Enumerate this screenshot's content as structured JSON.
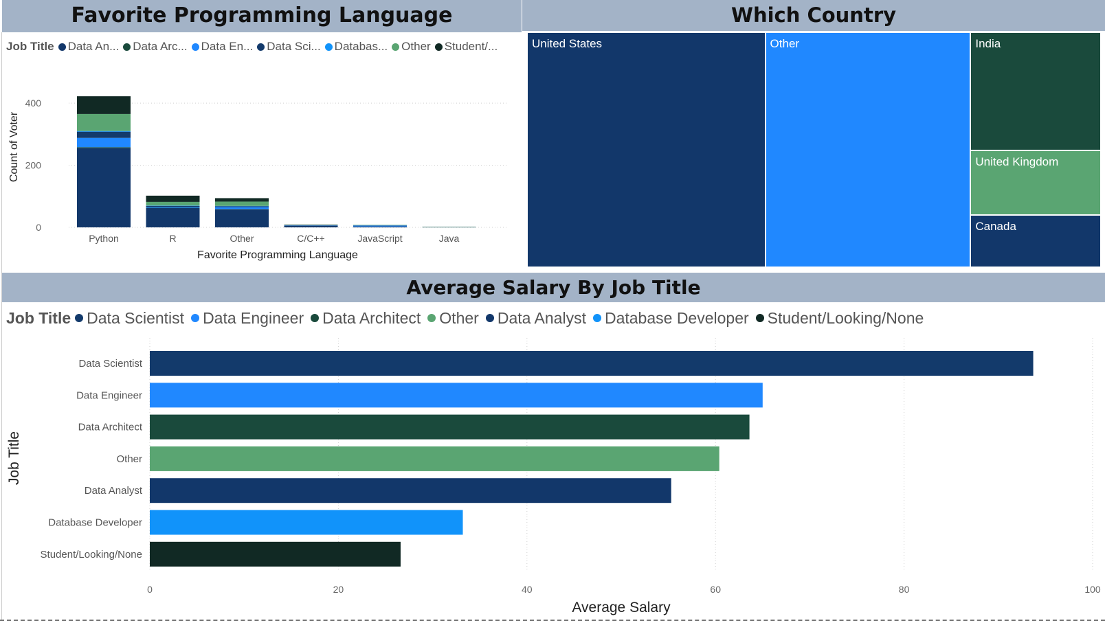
{
  "titles": {
    "languages": "Favorite Programming Language",
    "country": "Which Country",
    "salary": "Average Salary By Job Title"
  },
  "legend_top": {
    "title": "Job Title",
    "items": [
      {
        "label": "Data An...",
        "color": "#12376a"
      },
      {
        "label": "Data Arc...",
        "color": "#1a4a3c"
      },
      {
        "label": "Data En...",
        "color": "#2088ff"
      },
      {
        "label": "Data Sci...",
        "color": "#133a6b"
      },
      {
        "label": "Databas...",
        "color": "#1193fa"
      },
      {
        "label": "Other",
        "color": "#5aa572"
      },
      {
        "label": "Student/...",
        "color": "#112924"
      }
    ]
  },
  "legend_bottom": {
    "title": "Job Title",
    "items": [
      {
        "label": "Data Scientist",
        "color": "#133a6b"
      },
      {
        "label": "Data Engineer",
        "color": "#2088ff"
      },
      {
        "label": "Data Architect",
        "color": "#1a4a3c"
      },
      {
        "label": "Other",
        "color": "#5aa572"
      },
      {
        "label": "Data Analyst",
        "color": "#12376a"
      },
      {
        "label": "Database Developer",
        "color": "#1193fa"
      },
      {
        "label": "Student/Looking/None",
        "color": "#112924"
      }
    ]
  },
  "chart_data": [
    {
      "type": "bar",
      "stacked": true,
      "title": "Favorite Programming Language",
      "xlabel": "Favorite Programming Language",
      "ylabel": "Count of Voter",
      "ylim": [
        0,
        440
      ],
      "yticks": [
        0,
        200,
        400
      ],
      "grid": true,
      "categories": [
        "Python",
        "R",
        "Other",
        "C/C++",
        "JavaScript",
        "Java"
      ],
      "series": [
        {
          "name": "Data An...",
          "color": "#12376a",
          "values": [
            255,
            62,
            58,
            5,
            3,
            1
          ]
        },
        {
          "name": "Data Arc...",
          "color": "#1a4a3c",
          "values": [
            3,
            1,
            1,
            0,
            0,
            0
          ]
        },
        {
          "name": "Data En...",
          "color": "#2088ff",
          "values": [
            30,
            3,
            6,
            1,
            2,
            0
          ]
        },
        {
          "name": "Data Sci...",
          "color": "#133a6b",
          "values": [
            20,
            3,
            3,
            1,
            1,
            0
          ]
        },
        {
          "name": "Databas...",
          "color": "#1193fa",
          "values": [
            2,
            1,
            1,
            0,
            1,
            0
          ]
        },
        {
          "name": "Other",
          "color": "#5aa572",
          "values": [
            55,
            12,
            14,
            1,
            1,
            1
          ]
        },
        {
          "name": "Student/...",
          "color": "#112924",
          "values": [
            57,
            20,
            11,
            1,
            0,
            0
          ]
        }
      ]
    },
    {
      "type": "treemap",
      "title": "Which Country",
      "items": [
        {
          "label": "United States",
          "color": "#12376a",
          "value": 254
        },
        {
          "label": "Other",
          "color": "#2088ff",
          "value": 219
        },
        {
          "label": "India",
          "color": "#1a4a3c",
          "value": 70
        },
        {
          "label": "United Kingdom",
          "color": "#5aa572",
          "value": 38
        },
        {
          "label": "Canada",
          "color": "#12376a",
          "value": 31
        }
      ]
    },
    {
      "type": "bar",
      "orientation": "horizontal",
      "title": "Average Salary By Job Title",
      "xlabel": "Average Salary",
      "ylabel": "Job Title",
      "xlim": [
        0,
        100
      ],
      "xticks": [
        0,
        20,
        40,
        60,
        80,
        100
      ],
      "grid": true,
      "categories": [
        "Data Scientist",
        "Data Engineer",
        "Data Architect",
        "Other",
        "Data Analyst",
        "Database Developer",
        "Student/Looking/None"
      ],
      "values": [
        93.7,
        65.0,
        63.6,
        60.4,
        55.3,
        33.2,
        26.6
      ],
      "colors": [
        "#133a6b",
        "#2088ff",
        "#1a4a3c",
        "#5aa572",
        "#12376a",
        "#1193fa",
        "#112924"
      ]
    }
  ]
}
